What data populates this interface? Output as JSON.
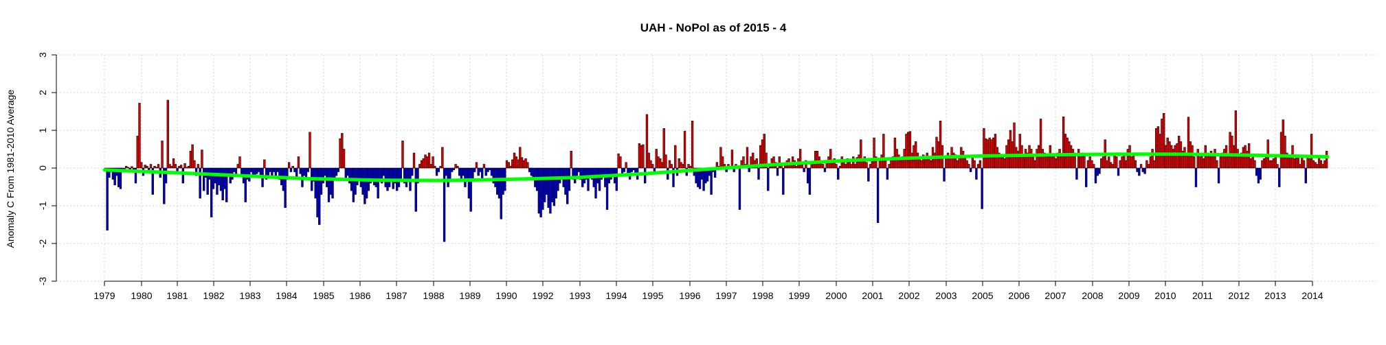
{
  "chart_data": {
    "type": "bar",
    "title": "UAH - NoPol as of  2015 - 4",
    "ylabel": "Anomaly C From 1981-2010 Average",
    "xlabel": "",
    "ylim": [
      -3,
      3
    ],
    "y_ticks": [
      "-3",
      "-2",
      "-1",
      "0",
      "1",
      "2",
      "3"
    ],
    "x_ticks": [
      "1979",
      "1980",
      "1981",
      "1982",
      "1983",
      "1984",
      "1985",
      "1986",
      "1987",
      "1988",
      "1989",
      "1990",
      "1992",
      "1993",
      "1994",
      "1995",
      "1996",
      "1997",
      "1998",
      "1999",
      "2000",
      "2001",
      "2002",
      "2003",
      "2005",
      "2006",
      "2007",
      "2008",
      "2009",
      "2010",
      "2011",
      "2012",
      "2013",
      "2014"
    ],
    "grid": true,
    "colors": {
      "positive": "#e00000",
      "negative": "#0000c8",
      "smooth": "#00ff00",
      "outline": "#000000"
    },
    "x_start": "1979-01",
    "x_end": "2015-04",
    "series": [
      {
        "values": [
          -0.05,
          -1.65,
          -0.25,
          -0.1,
          -0.3,
          -0.45,
          -0.2,
          -0.5,
          -0.55,
          -0.1,
          -0.05,
          0.05,
          0.02,
          -0.05,
          0.04,
          -0.1,
          -0.4,
          0.85,
          1.72,
          0.15,
          -0.2,
          0.08,
          0.05,
          -0.1,
          0.1,
          -0.7,
          0.05,
          0.02,
          0.1,
          -0.25,
          0.72,
          -0.95,
          -0.4,
          1.8,
          0.1,
          0.05,
          0.25,
          0.1,
          -0.1,
          0.05,
          0.08,
          -0.4,
          0.12,
          0.02,
          0.05,
          0.45,
          0.62,
          0.2,
          -0.2,
          0.1,
          -0.8,
          0.48,
          -0.6,
          -0.25,
          -0.7,
          -0.3,
          -1.3,
          -0.55,
          -0.4,
          -0.7,
          -0.45,
          -0.6,
          -0.85,
          -0.55,
          -0.9,
          -0.2,
          -0.4,
          -0.3,
          -0.1,
          -0.2,
          0.1,
          0.3,
          -0.2,
          -0.4,
          -0.9,
          -0.3,
          -0.35,
          -0.1,
          -0.25,
          -0.2,
          -0.15,
          -0.1,
          -0.25,
          -0.5,
          0.22,
          -0.3,
          -0.2,
          -0.1,
          -0.25,
          -0.1,
          -0.2,
          -0.1,
          -0.3,
          -0.45,
          -0.6,
          -1.05,
          -0.3,
          0.15,
          -0.1,
          0.05,
          -0.1,
          -0.25,
          0.3,
          -0.15,
          -0.5,
          -0.2,
          -0.3,
          -0.1,
          0.95,
          -0.6,
          -0.35,
          -0.8,
          -1.3,
          -1.5,
          -0.7,
          -0.4,
          -0.2,
          -0.5,
          -0.9,
          -0.7,
          -0.8,
          -0.3,
          -0.2,
          -0.1,
          0.78,
          0.92,
          0.5,
          -0.3,
          -0.2,
          -0.4,
          -0.6,
          -0.9,
          -0.7,
          -0.45,
          -0.3,
          -0.5,
          -0.7,
          -0.95,
          -0.8,
          -0.6,
          -0.4,
          -0.3,
          -0.45,
          -0.5,
          -0.8,
          -0.3,
          -0.4,
          -0.2,
          -0.5,
          -0.6,
          -0.5,
          -0.3,
          -0.55,
          -0.4,
          -0.6,
          -0.5,
          -0.35,
          0.72,
          -0.4,
          -0.5,
          -0.3,
          -0.6,
          -0.2,
          0.4,
          -1.15,
          -0.4,
          0.1,
          0.2,
          0.25,
          0.35,
          0.3,
          0.4,
          0.1,
          0.3,
          0.05,
          -0.2,
          -0.1,
          0.05,
          0.55,
          -1.95,
          -0.2,
          -0.5,
          -0.3,
          -0.1,
          -0.05,
          0.1,
          0.05,
          -0.2,
          -0.35,
          -0.2,
          -0.5,
          -0.3,
          -0.8,
          -1.15,
          -0.3,
          -0.1,
          0.15,
          -0.2,
          -0.1,
          -0.3,
          0.1,
          -0.2,
          -0.1,
          -0.05,
          -0.2,
          -0.4,
          -0.5,
          -0.7,
          -0.8,
          -1.35,
          -0.7,
          -0.6,
          0.2,
          0.15,
          0.05,
          0.22,
          0.4,
          0.3,
          0.22,
          0.55,
          0.28,
          0.2,
          0.25,
          0.15,
          -0.1,
          -0.2,
          -0.3,
          -0.5,
          -0.6,
          -1.2,
          -1.3,
          -1.1,
          -0.9,
          -0.7,
          -1.05,
          -1.2,
          -0.9,
          -1.0,
          -0.8,
          -0.6,
          -0.4,
          -0.3,
          -0.5,
          -0.7,
          -0.95,
          -0.6,
          0.45,
          -0.3,
          -0.4,
          -0.2,
          -0.1,
          -0.3,
          -0.5,
          -0.4,
          -0.3,
          -0.6,
          -0.2,
          -0.3,
          -0.5,
          -0.8,
          -0.4,
          -0.6,
          -0.3,
          -0.2,
          -0.5,
          -1.1,
          -0.4,
          -0.3,
          -0.2,
          -0.4,
          -0.6,
          0.38,
          0.3,
          -0.2,
          -0.1,
          0.15,
          -0.15,
          -0.3,
          -0.1,
          -0.05,
          -0.2,
          -0.3,
          0.65,
          0.6,
          0.62,
          -0.4,
          1.42,
          0.4,
          0.2,
          0.1,
          -0.1,
          0.5,
          0.3,
          0.25,
          0.15,
          1.05,
          0.35,
          -0.3,
          0.2,
          0.1,
          -0.5,
          0.6,
          -0.2,
          0.25,
          0.15,
          0.1,
          0.98,
          -0.2,
          0.1,
          0.05,
          1.25,
          -0.2,
          -0.4,
          -0.5,
          -0.55,
          -0.3,
          -0.6,
          -0.4,
          -0.35,
          -0.2,
          -0.7,
          -0.1,
          -0.25,
          0.15,
          0.05,
          0.55,
          0.3,
          0.1,
          -0.1,
          0.1,
          0.05,
          0.48,
          -0.1,
          0.1,
          0.05,
          -1.1,
          0.2,
          0.3,
          0.1,
          0.55,
          -0.1,
          0.3,
          0.4,
          0.2,
          0.25,
          -0.3,
          0.6,
          0.75,
          0.9,
          0.4,
          -0.6,
          0.1,
          0.25,
          0.3,
          0.15,
          -0.2,
          0.3,
          0.1,
          -0.7,
          0.1,
          0.2,
          0.25,
          0.15,
          0.3,
          0.2,
          0.05,
          0.25,
          0.5,
          0.1,
          -0.1,
          0.2,
          -0.4,
          -0.7,
          0.15,
          0.1,
          0.45,
          0.45,
          0.3,
          0.2,
          0.1,
          -0.1,
          0.15,
          0.3,
          0.5,
          0.2,
          0.25,
          0.1,
          -0.3,
          0.05,
          0.3,
          0.2,
          0.1,
          0.25,
          0.2,
          0.1,
          0.3,
          0.1,
          0.28,
          0.35,
          0.75,
          0.2,
          0.3,
          0.15,
          -0.35,
          0.1,
          0.2,
          0.8,
          0.3,
          -1.45,
          0.2,
          0.35,
          0.9,
          0.2,
          -0.3,
          0.1,
          0.25,
          0.3,
          0.8,
          0.5,
          0.35,
          0.2,
          0.3,
          0.5,
          0.9,
          0.95,
          0.97,
          0.4,
          0.6,
          0.7,
          0.4,
          0.3,
          0.2,
          0.35,
          0.3,
          0.4,
          0.25,
          0.2,
          0.55,
          0.4,
          0.82,
          0.7,
          1.25,
          0.6,
          -0.35,
          0.3,
          0.4,
          0.3,
          0.55,
          0.4,
          0.35,
          0.2,
          0.3,
          0.55,
          0.45,
          0.3,
          0.2,
          0.1,
          -0.1,
          0.3,
          0.2,
          -0.3,
          0.1,
          0.2,
          -1.08,
          1.05,
          0.78,
          0.75,
          0.8,
          0.75,
          0.8,
          0.9,
          0.55,
          0.4,
          0.3,
          0.35,
          0.25,
          0.6,
          0.75,
          1.0,
          0.7,
          1.2,
          0.55,
          0.45,
          0.9,
          0.6,
          0.3,
          0.5,
          0.4,
          0.6,
          0.5,
          0.3,
          0.2,
          0.5,
          0.6,
          1.3,
          0.5,
          0.4,
          0.3,
          0.3,
          0.6,
          0.3,
          0.35,
          0.25,
          0.4,
          0.5,
          0.3,
          1.36,
          0.9,
          0.8,
          0.7,
          0.6,
          0.5,
          0.4,
          -0.3,
          0.5,
          0.3,
          0.4,
          0.35,
          -0.5,
          0.2,
          0.3,
          0.2,
          0.1,
          -0.4,
          -0.2,
          -0.15,
          0.25,
          0.3,
          0.75,
          0.2,
          0.3,
          0.15,
          0.1,
          0.4,
          0.3,
          -0.2,
          0.2,
          0.3,
          0.4,
          0.2,
          0.5,
          0.6,
          0.3,
          0.4,
          0.2,
          -0.1,
          -0.2,
          0.1,
          -0.1,
          -0.15,
          0.2,
          0.1,
          0.3,
          0.5,
          0.2,
          1.05,
          1.1,
          0.9,
          1.3,
          1.45,
          0.6,
          0.8,
          0.7,
          0.6,
          0.5,
          0.6,
          0.65,
          0.85,
          0.7,
          0.45,
          0.55,
          0.4,
          1.35,
          0.7,
          0.6,
          0.3,
          -0.5,
          0.5,
          0.3,
          0.35,
          0.25,
          0.6,
          0.4,
          0.35,
          0.45,
          0.3,
          0.5,
          0.2,
          -0.4,
          0.35,
          0.4,
          0.5,
          0.6,
          0.3,
          0.95,
          0.85,
          0.6,
          1.52,
          0.5,
          0.3,
          0.4,
          0.55,
          0.6,
          0.45,
          0.65,
          0.25,
          0.35,
          0.2,
          -0.2,
          -0.4,
          -0.3,
          0.2,
          0.25,
          0.3,
          0.75,
          0.2,
          0.2,
          0.25,
          0.3,
          0.1,
          -0.5,
          0.95,
          1.28,
          0.85,
          0.4,
          0.3,
          0.35,
          0.6,
          0.25,
          0.35,
          0.3,
          0.1,
          0.3,
          0.2,
          -0.4,
          0.3,
          0.25,
          0.9,
          0.2,
          0.15,
          0.1,
          0.3,
          0.2,
          0.1,
          0.2,
          0.45
        ]
      },
      {
        "type": "line",
        "x": [
          "1979-01",
          "1981-01",
          "1983-01",
          "1985-01",
          "1987-01",
          "1989-01",
          "1991-01",
          "1993-01",
          "1995-01",
          "1997-01",
          "1999-01",
          "2001-01",
          "2003-01",
          "2005-01",
          "2007-01",
          "2009-01",
          "2011-01",
          "2013-01",
          "2015-04"
        ],
        "values": [
          -0.05,
          -0.12,
          -0.2,
          -0.28,
          -0.32,
          -0.33,
          -0.3,
          -0.25,
          -0.15,
          -0.02,
          0.1,
          0.2,
          0.27,
          0.32,
          0.35,
          0.37,
          0.37,
          0.34,
          0.3
        ]
      }
    ]
  }
}
